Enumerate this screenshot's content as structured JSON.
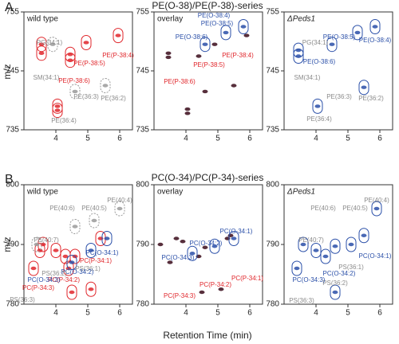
{
  "figure": {
    "panel_labels": [
      "A",
      "B"
    ],
    "row_titles": [
      "PE(O-38)/PE(P-38)-series",
      "PC(O-34)/PC(P-34)-series"
    ],
    "xlabel": "Retention Time (min)",
    "ylabel": "m/z"
  },
  "chart_data": [
    {
      "type": "scatter",
      "title": "wild type",
      "xlim": [
        3,
        6.4
      ],
      "ylim": [
        735,
        755
      ],
      "xticks": [
        4,
        5,
        6
      ],
      "yticks": [
        735,
        745,
        755
      ],
      "series": [
        {
          "color": "#e0262b",
          "x": [
            3.55,
            3.55,
            4.45,
            4.45,
            4.95,
            5.95,
            4.05,
            4.05
          ],
          "values": [
            749.5,
            748,
            747.8,
            746.8,
            749.8,
            751,
            739,
            738.3
          ]
        },
        {
          "color": "#9a9a9a",
          "x": [
            3.9,
            5.55,
            4.6
          ],
          "values": [
            749.5,
            742.5,
            741.5
          ]
        }
      ],
      "annotations": [
        {
          "text": "PG(34:1)",
          "color": "#8a8a8a"
        },
        {
          "text": "SM(34:1)",
          "color": "#8a8a8a"
        },
        {
          "text": "PE(P-38:6)",
          "color": "#e0262b"
        },
        {
          "text": "PE(P-38:5)",
          "color": "#e0262b"
        },
        {
          "text": "PE(P-38:4)",
          "color": "#e0262b"
        },
        {
          "text": "PE(36:2)",
          "color": "#8a8a8a"
        },
        {
          "text": "PE(36:3)",
          "color": "#8a8a8a"
        },
        {
          "text": "PE(36:4)",
          "color": "#8a8a8a"
        }
      ]
    },
    {
      "type": "scatter",
      "title": "overlay",
      "xlim": [
        3,
        6.4
      ],
      "ylim": [
        735,
        755
      ],
      "xticks": [
        4,
        5,
        6
      ],
      "yticks": [
        735,
        745,
        755
      ],
      "series": [
        {
          "color": "#3a0a1a",
          "x": [
            3.45,
            3.45,
            4.4,
            4.9,
            5.9,
            4.05,
            4.05,
            5.5,
            4.6
          ],
          "values": [
            748,
            747.3,
            747.5,
            749.5,
            751,
            738.5,
            737.8,
            742.5,
            741.5
          ]
        },
        {
          "color": "#2a4fa8",
          "x": [
            4.6,
            5.25,
            5.8
          ],
          "values": [
            749.5,
            751.5,
            752.5
          ]
        }
      ],
      "annotations": [
        {
          "text": "PE(O-38:4)",
          "color": "#2a4fa8"
        },
        {
          "text": "PE(O-38:5)",
          "color": "#2a4fa8"
        },
        {
          "text": "PE(O-38:6)",
          "color": "#2a4fa8"
        },
        {
          "text": "PE(P-38:4)",
          "color": "#e0262b"
        },
        {
          "text": "PE(P-38:5)",
          "color": "#e0262b"
        },
        {
          "text": "PE(P-38:6)",
          "color": "#e0262b"
        }
      ]
    },
    {
      "type": "scatter",
      "title": "ΔPeds1",
      "xlim": [
        3,
        6.4
      ],
      "ylim": [
        735,
        755
      ],
      "xticks": [
        4,
        5,
        6
      ],
      "yticks": [
        735,
        745,
        755
      ],
      "series": [
        {
          "color": "#2a4fa8",
          "x": [
            3.45,
            3.45,
            4.5,
            5.3,
            5.85,
            4.05,
            5.5
          ],
          "values": [
            748.5,
            747.5,
            749.5,
            751.5,
            752.5,
            739,
            742.2
          ]
        }
      ],
      "annotations": [
        {
          "text": "PG(34:1)",
          "color": "#8a8a8a"
        },
        {
          "text": "SM(34:1)",
          "color": "#8a8a8a"
        },
        {
          "text": "PE(O-38:6)",
          "color": "#2a4fa8"
        },
        {
          "text": "PE(O-38:5)",
          "color": "#2a4fa8"
        },
        {
          "text": "PE(O-38:4)",
          "color": "#2a4fa8"
        },
        {
          "text": "PE(36:2)",
          "color": "#8a8a8a"
        },
        {
          "text": "PE(36:3)",
          "color": "#8a8a8a"
        },
        {
          "text": "PE(36:4)",
          "color": "#8a8a8a"
        }
      ]
    },
    {
      "type": "scatter",
      "title": "wild type",
      "xlim": [
        3,
        6.4
      ],
      "ylim": [
        780,
        800
      ],
      "xticks": [
        4,
        5,
        6
      ],
      "yticks": [
        780,
        790,
        800
      ],
      "series": [
        {
          "color": "#e0262b",
          "x": [
            3.5,
            3.6,
            4,
            4.3,
            4.4,
            4.6,
            5.4,
            3.3,
            4.5,
            5.1
          ],
          "values": [
            789,
            790,
            789,
            788,
            786,
            788,
            791,
            786,
            782,
            782.5
          ]
        },
        {
          "color": "#2a4fa8",
          "x": [
            4.5,
            5.1,
            5.6
          ],
          "values": [
            787,
            789,
            791
          ]
        },
        {
          "color": "#9a9a9a",
          "x": [
            3.4,
            4.6,
            5.2,
            6
          ],
          "values": [
            790,
            793,
            794,
            796
          ]
        }
      ],
      "annotations": [
        {
          "text": "PE(40:4)",
          "color": "#8a8a8a"
        },
        {
          "text": "PE(40:5)",
          "color": "#8a8a8a"
        },
        {
          "text": "PE(40:6)",
          "color": "#8a8a8a"
        },
        {
          "text": "PE(40:7)",
          "color": "#8a8a8a"
        },
        {
          "text": "PC(O-34:1)",
          "color": "#2a4fa8"
        },
        {
          "text": "PC(P-34:1)",
          "color": "#e0262b"
        },
        {
          "text": "PS(36:1)",
          "color": "#8a8a8a"
        },
        {
          "text": "PC(O-34:2)",
          "color": "#2a4fa8"
        },
        {
          "text": "PC(P-34:2)",
          "color": "#e0262b"
        },
        {
          "text": "PS(36:2)",
          "color": "#8a8a8a"
        },
        {
          "text": "PC(O-34:3)",
          "color": "#2a4fa8"
        },
        {
          "text": "PC(P-34:3)",
          "color": "#e0262b"
        },
        {
          "text": "PS(36:3)",
          "color": "#8a8a8a"
        }
      ]
    },
    {
      "type": "scatter",
      "title": "overlay",
      "xlim": [
        3,
        6.4
      ],
      "ylim": [
        780,
        800
      ],
      "xticks": [
        4,
        5,
        6
      ],
      "yticks": [
        780,
        790,
        800
      ],
      "series": [
        {
          "color": "#3a0a1a",
          "x": [
            3.7,
            3.9,
            4.4,
            4.6,
            5.3,
            5.4,
            3.5,
            4.5,
            5.1,
            3.2
          ],
          "values": [
            791,
            790.5,
            788,
            789.5,
            791,
            791.5,
            787,
            782,
            782.5,
            790
          ]
        },
        {
          "color": "#2a4fa8",
          "x": [
            4.2,
            4.9,
            5.5
          ],
          "values": [
            788.5,
            789.7,
            791
          ]
        }
      ],
      "annotations": [
        {
          "text": "PC(O-34:1)",
          "color": "#2a4fa8"
        },
        {
          "text": "PC(O-34:2)",
          "color": "#2a4fa8"
        },
        {
          "text": "PC(O-34:3)",
          "color": "#2a4fa8"
        },
        {
          "text": "PC(P-34:1)",
          "color": "#e0262b"
        },
        {
          "text": "PC(P-34:2)",
          "color": "#e0262b"
        },
        {
          "text": "PC(P-34:3)",
          "color": "#e0262b"
        }
      ]
    },
    {
      "type": "scatter",
      "title": "ΔPeds1",
      "xlim": [
        3,
        6.4
      ],
      "ylim": [
        780,
        800
      ],
      "xticks": [
        4,
        5,
        6
      ],
      "yticks": [
        780,
        790,
        800
      ],
      "series": [
        {
          "color": "#2a4fa8",
          "x": [
            3.6,
            4,
            4.3,
            4.6,
            5.1,
            5.5,
            3.4,
            5.9,
            4.6
          ],
          "values": [
            790,
            789,
            788,
            789.7,
            790,
            791.5,
            786,
            796,
            782
          ]
        }
      ],
      "annotations": [
        {
          "text": "PE(40:4)",
          "color": "#8a8a8a"
        },
        {
          "text": "PE(40:5)",
          "color": "#8a8a8a"
        },
        {
          "text": "PE(40:6)",
          "color": "#8a8a8a"
        },
        {
          "text": "PE(40:7)",
          "color": "#8a8a8a"
        },
        {
          "text": "PC(O-34:1)",
          "color": "#2a4fa8"
        },
        {
          "text": "PS(36:1)",
          "color": "#8a8a8a"
        },
        {
          "text": "PC(O-34:2)",
          "color": "#2a4fa8"
        },
        {
          "text": "PS(36:2)",
          "color": "#8a8a8a"
        },
        {
          "text": "PC(O-34:3)",
          "color": "#2a4fa8"
        },
        {
          "text": "PS(36:3)",
          "color": "#8a8a8a"
        }
      ]
    }
  ]
}
